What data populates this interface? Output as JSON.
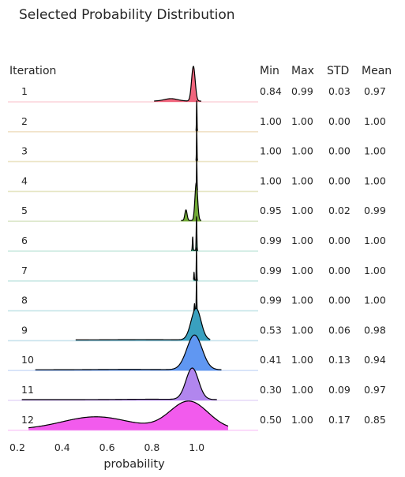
{
  "chart_data": {
    "type": "ridgeline",
    "title": "Selected Probability Distribution",
    "xlabel": "probability",
    "row_header": "Iteration",
    "stat_headers": [
      "Min",
      "Max",
      "STD",
      "Mean"
    ],
    "x_ticks": [
      "0.2",
      "0.4",
      "0.6",
      "0.8",
      "1.0"
    ],
    "xlim": [
      0.18,
      1.2
    ],
    "series": [
      {
        "label": "1",
        "min": "0.84",
        "max": "0.99",
        "std": "0.03",
        "mean": "0.97",
        "color": "#f0657d",
        "baseline_color": "#fbd3da"
      },
      {
        "label": "2",
        "min": "1.00",
        "max": "1.00",
        "std": "0.00",
        "mean": "1.00",
        "color": "#d49a3a",
        "baseline_color": "#f1e2c8"
      },
      {
        "label": "3",
        "min": "1.00",
        "max": "1.00",
        "std": "0.00",
        "mean": "1.00",
        "color": "#b59f3b",
        "baseline_color": "#ece5c6"
      },
      {
        "label": "4",
        "min": "1.00",
        "max": "1.00",
        "std": "0.00",
        "mean": "1.00",
        "color": "#a2a23a",
        "baseline_color": "#e6e6c4"
      },
      {
        "label": "5",
        "min": "0.95",
        "max": "1.00",
        "std": "0.02",
        "mean": "0.99",
        "color": "#72ab36",
        "baseline_color": "#dde8cc"
      },
      {
        "label": "6",
        "min": "0.99",
        "max": "1.00",
        "std": "0.00",
        "mean": "1.00",
        "color": "#3aa881",
        "baseline_color": "#c8e8dd"
      },
      {
        "label": "7",
        "min": "0.99",
        "max": "1.00",
        "std": "0.00",
        "mean": "1.00",
        "color": "#36a79c",
        "baseline_color": "#c7e7e3"
      },
      {
        "label": "8",
        "min": "0.99",
        "max": "1.00",
        "std": "0.00",
        "mean": "1.00",
        "color": "#38a4ad",
        "baseline_color": "#c8e6e9"
      },
      {
        "label": "9",
        "min": "0.53",
        "max": "1.00",
        "std": "0.06",
        "mean": "0.98",
        "color": "#39a0bf",
        "baseline_color": "#c9e3ed"
      },
      {
        "label": "10",
        "min": "0.41",
        "max": "1.00",
        "std": "0.13",
        "mean": "0.94",
        "color": "#6097f2",
        "baseline_color": "#d3e0f8"
      },
      {
        "label": "11",
        "min": "0.30",
        "max": "1.00",
        "std": "0.09",
        "mean": "0.97",
        "color": "#b186ee",
        "baseline_color": "#e6d9f8"
      },
      {
        "label": "12",
        "min": "0.50",
        "max": "1.00",
        "std": "0.17",
        "mean": "0.85",
        "color": "#f25bed",
        "baseline_color": "#fbd1f9"
      }
    ]
  }
}
